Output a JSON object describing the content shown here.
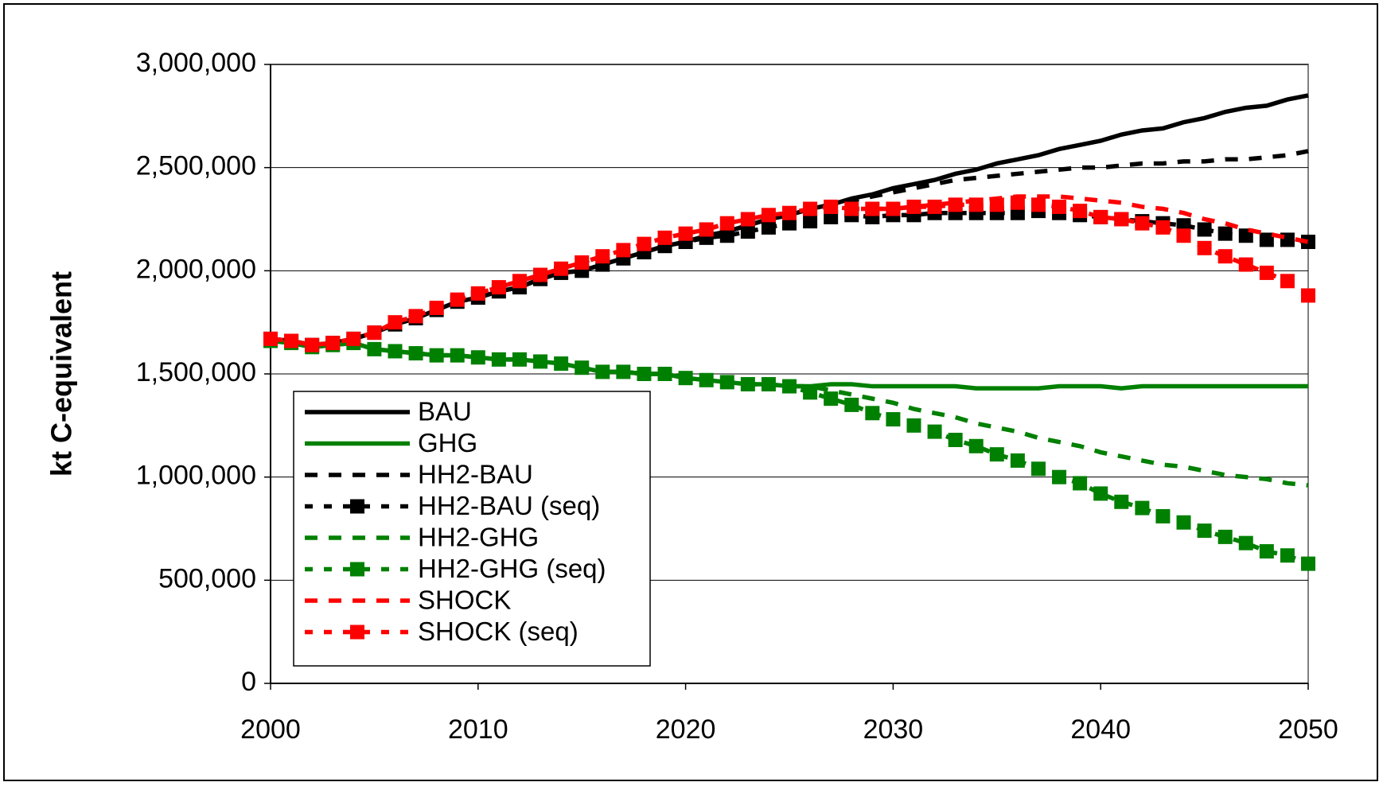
{
  "chart_data": {
    "type": "line",
    "y_label": "kt C-equivalent",
    "x": [
      2000,
      2001,
      2002,
      2003,
      2004,
      2005,
      2006,
      2007,
      2008,
      2009,
      2010,
      2011,
      2012,
      2013,
      2014,
      2015,
      2016,
      2017,
      2018,
      2019,
      2020,
      2021,
      2022,
      2023,
      2024,
      2025,
      2026,
      2027,
      2028,
      2029,
      2030,
      2031,
      2032,
      2033,
      2034,
      2035,
      2036,
      2037,
      2038,
      2039,
      2040,
      2041,
      2042,
      2043,
      2044,
      2045,
      2046,
      2047,
      2048,
      2049,
      2050
    ],
    "xlim": [
      2000,
      2050
    ],
    "xticks": [
      2000,
      2010,
      2020,
      2030,
      2040,
      2050
    ],
    "ylim": [
      0,
      3000000
    ],
    "yticks": [
      0,
      {
        "value": 500000,
        "label": "500,000"
      },
      {
        "value": 1000000,
        "label": "1,000,000"
      },
      {
        "value": 1500000,
        "label": "1,500,000"
      },
      {
        "value": 2000000,
        "label": "2,000,000"
      },
      {
        "value": 2500000,
        "label": "2,500,000"
      },
      {
        "value": 3000000,
        "label": "3,000,000"
      }
    ],
    "grid": true,
    "legend": "lower left",
    "series": [
      {
        "name": "BAU",
        "color": "#000000",
        "line_style": "solid",
        "marker": null,
        "values": [
          1670000,
          1660000,
          1640000,
          1650000,
          1670000,
          1700000,
          1740000,
          1770000,
          1810000,
          1850000,
          1870000,
          1900000,
          1920000,
          1960000,
          1990000,
          2000000,
          2030000,
          2060000,
          2090000,
          2120000,
          2140000,
          2170000,
          2190000,
          2220000,
          2250000,
          2270000,
          2300000,
          2320000,
          2350000,
          2370000,
          2400000,
          2420000,
          2440000,
          2470000,
          2490000,
          2520000,
          2540000,
          2560000,
          2590000,
          2610000,
          2630000,
          2660000,
          2680000,
          2690000,
          2720000,
          2740000,
          2770000,
          2790000,
          2800000,
          2830000,
          2850000
        ]
      },
      {
        "name": "GHG",
        "color": "#008000",
        "line_style": "solid",
        "marker": null,
        "values": [
          1660000,
          1650000,
          1630000,
          1640000,
          1650000,
          1620000,
          1610000,
          1600000,
          1590000,
          1590000,
          1580000,
          1570000,
          1570000,
          1560000,
          1550000,
          1530000,
          1510000,
          1510000,
          1500000,
          1500000,
          1480000,
          1470000,
          1460000,
          1450000,
          1450000,
          1440000,
          1440000,
          1450000,
          1450000,
          1440000,
          1440000,
          1440000,
          1440000,
          1440000,
          1430000,
          1430000,
          1430000,
          1430000,
          1440000,
          1440000,
          1440000,
          1430000,
          1440000,
          1440000,
          1440000,
          1440000,
          1440000,
          1440000,
          1440000,
          1440000,
          1440000
        ]
      },
      {
        "name": "HH2-BAU",
        "color": "#000000",
        "line_style": "dashed",
        "marker": null,
        "values": [
          1670000,
          1660000,
          1640000,
          1650000,
          1670000,
          1700000,
          1740000,
          1770000,
          1810000,
          1850000,
          1870000,
          1900000,
          1920000,
          1960000,
          1990000,
          2000000,
          2030000,
          2060000,
          2090000,
          2120000,
          2140000,
          2170000,
          2190000,
          2220000,
          2250000,
          2270000,
          2300000,
          2320000,
          2340000,
          2360000,
          2380000,
          2400000,
          2420000,
          2440000,
          2450000,
          2460000,
          2470000,
          2480000,
          2490000,
          2500000,
          2500000,
          2510000,
          2520000,
          2520000,
          2530000,
          2530000,
          2540000,
          2540000,
          2550000,
          2560000,
          2580000
        ]
      },
      {
        "name": "HH2-BAU (seq)",
        "color": "#000000",
        "line_style": "dashed",
        "marker": "square",
        "values": [
          1670000,
          1660000,
          1640000,
          1650000,
          1670000,
          1700000,
          1740000,
          1770000,
          1810000,
          1850000,
          1870000,
          1900000,
          1920000,
          1960000,
          1990000,
          2000000,
          2030000,
          2060000,
          2090000,
          2120000,
          2140000,
          2160000,
          2170000,
          2190000,
          2210000,
          2230000,
          2240000,
          2260000,
          2270000,
          2260000,
          2270000,
          2270000,
          2280000,
          2280000,
          2280000,
          2280000,
          2280000,
          2290000,
          2280000,
          2270000,
          2260000,
          2250000,
          2240000,
          2230000,
          2220000,
          2200000,
          2180000,
          2170000,
          2150000,
          2150000,
          2140000
        ]
      },
      {
        "name": "HH2-GHG",
        "color": "#008000",
        "line_style": "dashed",
        "marker": null,
        "values": [
          1660000,
          1650000,
          1630000,
          1640000,
          1650000,
          1620000,
          1610000,
          1600000,
          1590000,
          1590000,
          1580000,
          1570000,
          1570000,
          1560000,
          1550000,
          1530000,
          1510000,
          1510000,
          1500000,
          1500000,
          1480000,
          1470000,
          1460000,
          1450000,
          1450000,
          1440000,
          1440000,
          1420000,
          1400000,
          1380000,
          1360000,
          1330000,
          1310000,
          1290000,
          1260000,
          1240000,
          1220000,
          1190000,
          1170000,
          1150000,
          1120000,
          1100000,
          1080000,
          1060000,
          1050000,
          1030000,
          1010000,
          1000000,
          990000,
          970000,
          960000
        ]
      },
      {
        "name": "HH2-GHG (seq)",
        "color": "#008000",
        "line_style": "dashed",
        "marker": "square",
        "values": [
          1660000,
          1650000,
          1630000,
          1640000,
          1650000,
          1620000,
          1610000,
          1600000,
          1590000,
          1590000,
          1580000,
          1570000,
          1570000,
          1560000,
          1550000,
          1530000,
          1510000,
          1510000,
          1500000,
          1500000,
          1480000,
          1470000,
          1460000,
          1450000,
          1450000,
          1440000,
          1410000,
          1380000,
          1350000,
          1310000,
          1280000,
          1250000,
          1220000,
          1180000,
          1150000,
          1110000,
          1080000,
          1040000,
          1000000,
          970000,
          920000,
          880000,
          850000,
          810000,
          780000,
          740000,
          710000,
          680000,
          640000,
          620000,
          580000
        ]
      },
      {
        "name": "SHOCK",
        "color": "#ff0000",
        "line_style": "dashed",
        "marker": null,
        "values": [
          1670000,
          1660000,
          1640000,
          1650000,
          1670000,
          1700000,
          1750000,
          1780000,
          1820000,
          1860000,
          1890000,
          1920000,
          1950000,
          1980000,
          2010000,
          2040000,
          2070000,
          2100000,
          2130000,
          2160000,
          2180000,
          2200000,
          2230000,
          2250000,
          2270000,
          2280000,
          2300000,
          2310000,
          2300000,
          2300000,
          2300000,
          2310000,
          2320000,
          2330000,
          2340000,
          2350000,
          2360000,
          2360000,
          2360000,
          2350000,
          2340000,
          2330000,
          2310000,
          2300000,
          2280000,
          2250000,
          2230000,
          2200000,
          2180000,
          2160000,
          2140000
        ]
      },
      {
        "name": "SHOCK (seq)",
        "color": "#ff0000",
        "line_style": "dashed",
        "marker": "square",
        "values": [
          1670000,
          1660000,
          1640000,
          1650000,
          1670000,
          1700000,
          1750000,
          1780000,
          1820000,
          1860000,
          1890000,
          1920000,
          1950000,
          1980000,
          2010000,
          2040000,
          2070000,
          2100000,
          2130000,
          2160000,
          2180000,
          2200000,
          2230000,
          2250000,
          2270000,
          2280000,
          2300000,
          2310000,
          2300000,
          2300000,
          2300000,
          2310000,
          2310000,
          2320000,
          2320000,
          2320000,
          2330000,
          2320000,
          2310000,
          2290000,
          2260000,
          2250000,
          2230000,
          2210000,
          2170000,
          2110000,
          2070000,
          2030000,
          1990000,
          1950000,
          1880000
        ]
      }
    ]
  }
}
